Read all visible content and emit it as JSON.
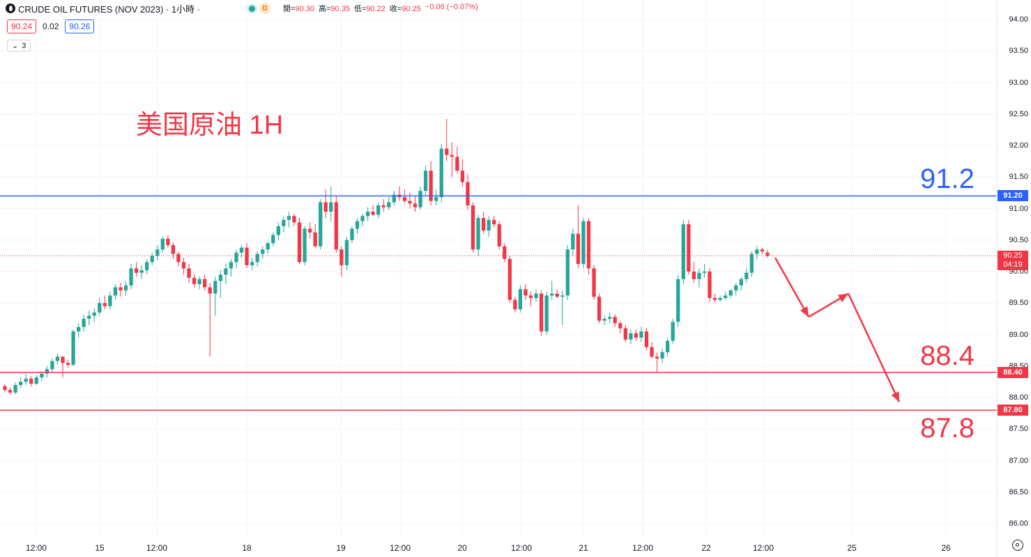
{
  "header": {
    "title": "CRUDE OIL FUTURES (NOV 2023) · 1小時 ·",
    "badge": "D",
    "ohlc": [
      {
        "label": "開=",
        "value": "90.30"
      },
      {
        "label": "高=",
        "value": "90.35"
      },
      {
        "label": "低=",
        "value": "90.22"
      },
      {
        "label": "收=",
        "value": "90.25"
      },
      {
        "label": "",
        "value": "−0.06 (−0.07%)"
      }
    ]
  },
  "quote": {
    "bid": "90.24",
    "spread": "0.02",
    "ask": "90.26"
  },
  "indicators_toggle": {
    "count": "3"
  },
  "annotation_title": "美国原油 1H",
  "levels": [
    {
      "price": 91.2,
      "label": "91.2",
      "tag": "91.20",
      "color": "#2962ff"
    },
    {
      "price": 88.4,
      "label": "88.4",
      "tag": "88.40",
      "color": "#f23645"
    },
    {
      "price": 87.8,
      "label": "87.8",
      "tag": "87.80",
      "color": "#f23645"
    }
  ],
  "current_price": {
    "price": "90.25",
    "countdown": "04:19",
    "color": "#f23645"
  },
  "price_axis": [
    "94.00",
    "93.50",
    "93.00",
    "92.50",
    "92.00",
    "91.50",
    "91.00",
    "90.50",
    "90.00",
    "89.50",
    "89.00",
    "88.50",
    "88.00",
    "87.50",
    "87.00",
    "86.50",
    "86.00"
  ],
  "time_axis": [
    "12:00",
    "15",
    "12:00",
    "18",
    "19",
    "12:00",
    "20",
    "12:00",
    "21",
    "12:00",
    "22",
    "12:00",
    "25",
    "26"
  ],
  "colors": {
    "up": "#26a69a",
    "down": "#f23645",
    "blue_line": "#2962ff",
    "red_line": "#f23645"
  },
  "chart_data": {
    "type": "candlestick",
    "title": "美国原油 1H",
    "ylim": [
      86.0,
      94.0
    ],
    "candles": [
      [
        88.18,
        88.22,
        88.08,
        88.12
      ],
      [
        88.12,
        88.16,
        88.05,
        88.08
      ],
      [
        88.08,
        88.24,
        88.05,
        88.2
      ],
      [
        88.2,
        88.32,
        88.15,
        88.25
      ],
      [
        88.25,
        88.38,
        88.2,
        88.3
      ],
      [
        88.3,
        88.34,
        88.18,
        88.22
      ],
      [
        88.22,
        88.36,
        88.2,
        88.32
      ],
      [
        88.32,
        88.42,
        88.26,
        88.38
      ],
      [
        88.38,
        88.5,
        88.32,
        88.45
      ],
      [
        88.45,
        88.62,
        88.4,
        88.58
      ],
      [
        88.58,
        88.7,
        88.52,
        88.65
      ],
      [
        88.65,
        88.62,
        88.32,
        88.55
      ],
      [
        88.55,
        88.6,
        88.48,
        88.52
      ],
      [
        88.52,
        89.08,
        88.5,
        89.05
      ],
      [
        89.05,
        89.18,
        88.95,
        89.12
      ],
      [
        89.12,
        89.32,
        89.05,
        89.25
      ],
      [
        89.25,
        89.38,
        89.15,
        89.3
      ],
      [
        89.3,
        89.42,
        89.2,
        89.35
      ],
      [
        89.35,
        89.58,
        89.3,
        89.5
      ],
      [
        89.5,
        89.62,
        89.4,
        89.45
      ],
      [
        89.45,
        89.68,
        89.4,
        89.62
      ],
      [
        89.62,
        89.8,
        89.55,
        89.75
      ],
      [
        89.75,
        89.82,
        89.6,
        89.7
      ],
      [
        89.7,
        89.85,
        89.62,
        89.78
      ],
      [
        89.78,
        90.12,
        89.72,
        90.05
      ],
      [
        90.05,
        90.15,
        89.92,
        89.98
      ],
      [
        89.98,
        90.1,
        89.88,
        90.02
      ],
      [
        90.02,
        90.2,
        89.96,
        90.15
      ],
      [
        90.15,
        90.3,
        90.1,
        90.25
      ],
      [
        90.25,
        90.42,
        90.18,
        90.35
      ],
      [
        90.35,
        90.55,
        90.3,
        90.52
      ],
      [
        90.52,
        90.58,
        90.38,
        90.42
      ],
      [
        90.42,
        90.46,
        90.2,
        90.28
      ],
      [
        90.28,
        90.32,
        90.08,
        90.15
      ],
      [
        90.15,
        90.22,
        89.95,
        90.05
      ],
      [
        90.05,
        90.12,
        89.82,
        89.9
      ],
      [
        89.9,
        89.96,
        89.75,
        89.8
      ],
      [
        89.8,
        89.92,
        89.72,
        89.88
      ],
      [
        89.88,
        89.95,
        89.7,
        89.75
      ],
      [
        89.75,
        89.82,
        88.65,
        89.65
      ],
      [
        89.65,
        89.92,
        89.3,
        89.85
      ],
      [
        89.85,
        90.02,
        89.58,
        89.95
      ],
      [
        89.95,
        90.12,
        89.8,
        90.05
      ],
      [
        90.05,
        90.2,
        89.92,
        90.15
      ],
      [
        90.15,
        90.35,
        90.05,
        90.3
      ],
      [
        90.3,
        90.42,
        90.22,
        90.38
      ],
      [
        90.38,
        90.45,
        90.05,
        90.1
      ],
      [
        90.1,
        90.22,
        90.02,
        90.15
      ],
      [
        90.15,
        90.32,
        90.08,
        90.28
      ],
      [
        90.28,
        90.4,
        90.2,
        90.35
      ],
      [
        90.35,
        90.48,
        90.28,
        90.45
      ],
      [
        90.45,
        90.62,
        90.4,
        90.58
      ],
      [
        90.58,
        90.78,
        90.5,
        90.72
      ],
      [
        90.72,
        90.88,
        90.62,
        90.82
      ],
      [
        90.82,
        90.95,
        90.7,
        90.88
      ],
      [
        90.88,
        90.92,
        90.72,
        90.78
      ],
      [
        90.78,
        90.85,
        90.12,
        90.15
      ],
      [
        90.15,
        90.72,
        90.1,
        90.68
      ],
      [
        90.68,
        90.78,
        90.52,
        90.62
      ],
      [
        90.62,
        90.75,
        90.38,
        90.4
      ],
      [
        90.4,
        91.15,
        90.35,
        91.1
      ],
      [
        91.1,
        91.3,
        90.85,
        90.95
      ],
      [
        90.95,
        91.35,
        90.8,
        91.1
      ],
      [
        91.1,
        91.2,
        90.3,
        90.35
      ],
      [
        90.35,
        90.4,
        89.92,
        90.1
      ],
      [
        90.1,
        90.55,
        90.02,
        90.5
      ],
      [
        90.5,
        90.72,
        90.45,
        90.68
      ],
      [
        90.68,
        90.85,
        90.6,
        90.8
      ],
      [
        90.8,
        90.92,
        90.72,
        90.88
      ],
      [
        90.88,
        91.02,
        90.8,
        90.95
      ],
      [
        90.95,
        91.05,
        90.88,
        90.9
      ],
      [
        90.9,
        91.1,
        90.85,
        91.05
      ],
      [
        91.05,
        91.15,
        90.95,
        91.02
      ],
      [
        91.02,
        91.18,
        90.98,
        91.1
      ],
      [
        91.1,
        91.28,
        91.05,
        91.22
      ],
      [
        91.22,
        91.35,
        91.12,
        91.18
      ],
      [
        91.18,
        91.3,
        91.08,
        91.12
      ],
      [
        91.12,
        91.25,
        91.0,
        91.08
      ],
      [
        91.08,
        91.2,
        90.95,
        91.02
      ],
      [
        91.02,
        91.35,
        90.98,
        91.28
      ],
      [
        91.28,
        91.68,
        91.2,
        91.6
      ],
      [
        91.6,
        91.75,
        91.05,
        91.12
      ],
      [
        91.12,
        91.3,
        91.05,
        91.18
      ],
      [
        91.18,
        92.02,
        91.1,
        91.95
      ],
      [
        91.95,
        92.42,
        91.75,
        91.85
      ],
      [
        91.85,
        92.05,
        91.5,
        91.82
      ],
      [
        91.82,
        91.98,
        91.55,
        91.6
      ],
      [
        91.6,
        91.78,
        91.35,
        91.42
      ],
      [
        91.42,
        91.55,
        90.98,
        91.05
      ],
      [
        91.05,
        91.1,
        90.3,
        90.35
      ],
      [
        90.35,
        90.9,
        90.25,
        90.85
      ],
      [
        90.85,
        90.95,
        90.6,
        90.65
      ],
      [
        90.65,
        90.88,
        90.55,
        90.82
      ],
      [
        90.82,
        90.88,
        90.7,
        90.75
      ],
      [
        90.75,
        90.8,
        90.35,
        90.4
      ],
      [
        90.4,
        90.45,
        90.15,
        90.2
      ],
      [
        90.2,
        90.25,
        89.5,
        89.55
      ],
      [
        89.55,
        89.6,
        89.35,
        89.4
      ],
      [
        89.4,
        89.78,
        89.35,
        89.72
      ],
      [
        89.72,
        89.8,
        89.55,
        89.62
      ],
      [
        89.62,
        89.68,
        89.45,
        89.58
      ],
      [
        89.58,
        89.72,
        89.52,
        89.65
      ],
      [
        89.65,
        89.7,
        88.98,
        89.05
      ],
      [
        89.05,
        89.68,
        89.0,
        89.62
      ],
      [
        89.62,
        89.85,
        89.55,
        89.65
      ],
      [
        89.65,
        89.72,
        89.58,
        89.6
      ],
      [
        89.6,
        89.7,
        89.15,
        89.62
      ],
      [
        89.62,
        90.42,
        89.55,
        90.35
      ],
      [
        90.35,
        90.68,
        90.25,
        90.6
      ],
      [
        90.6,
        91.05,
        90.05,
        90.12
      ],
      [
        90.12,
        90.85,
        90.05,
        90.8
      ],
      [
        90.8,
        90.85,
        89.95,
        90.05
      ],
      [
        90.05,
        90.1,
        89.55,
        89.6
      ],
      [
        89.6,
        89.65,
        89.18,
        89.22
      ],
      [
        89.22,
        89.3,
        89.15,
        89.25
      ],
      [
        89.25,
        89.35,
        89.18,
        89.28
      ],
      [
        89.28,
        89.32,
        89.12,
        89.18
      ],
      [
        89.18,
        89.22,
        89.02,
        89.1
      ],
      [
        89.1,
        89.15,
        88.88,
        88.92
      ],
      [
        88.92,
        89.08,
        88.85,
        89.02
      ],
      [
        89.02,
        89.08,
        88.9,
        88.95
      ],
      [
        88.95,
        89.12,
        88.88,
        89.05
      ],
      [
        89.05,
        89.1,
        88.75,
        88.8
      ],
      [
        88.8,
        88.88,
        88.62,
        88.65
      ],
      [
        88.65,
        88.72,
        88.4,
        88.62
      ],
      [
        88.62,
        88.78,
        88.55,
        88.72
      ],
      [
        88.72,
        88.95,
        88.65,
        88.9
      ],
      [
        88.9,
        89.25,
        88.85,
        89.2
      ],
      [
        89.2,
        89.95,
        89.12,
        89.88
      ],
      [
        89.88,
        90.82,
        89.8,
        90.75
      ],
      [
        90.75,
        90.82,
        89.95,
        90.0
      ],
      [
        90.0,
        90.15,
        89.82,
        89.88
      ],
      [
        89.88,
        90.05,
        89.75,
        89.98
      ],
      [
        89.98,
        90.12,
        89.9,
        90.0
      ],
      [
        90.0,
        90.05,
        89.52,
        89.58
      ],
      [
        89.58,
        89.65,
        89.5,
        89.55
      ],
      [
        89.55,
        89.62,
        89.52,
        89.58
      ],
      [
        89.58,
        89.68,
        89.55,
        89.62
      ],
      [
        89.62,
        89.72,
        89.58,
        89.7
      ],
      [
        89.7,
        89.82,
        89.62,
        89.78
      ],
      [
        89.78,
        89.92,
        89.7,
        89.88
      ],
      [
        89.88,
        90.05,
        89.82,
        89.98
      ],
      [
        89.98,
        90.32,
        89.92,
        90.28
      ],
      [
        90.28,
        90.4,
        90.2,
        90.35
      ],
      [
        90.35,
        90.38,
        90.28,
        90.32
      ],
      [
        90.3,
        90.35,
        90.22,
        90.25
      ]
    ]
  }
}
